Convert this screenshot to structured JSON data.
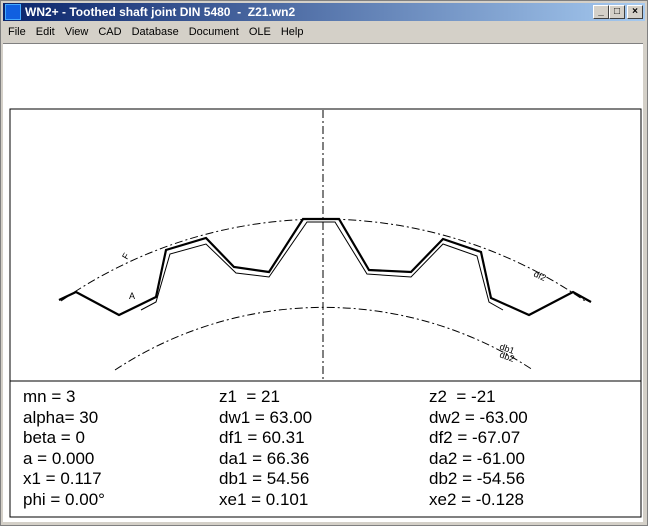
{
  "window": {
    "title": "WN2+ - Toothed shaft joint DIN 5480  -  Z21.wn2"
  },
  "menu": [
    "File",
    "Edit",
    "View",
    "CAD",
    "Database",
    "Document",
    "OLE",
    "Help"
  ],
  "drawing": {
    "labels": [
      "F",
      "A",
      "df2",
      "db1",
      "db2"
    ]
  },
  "table": {
    "rows": [
      [
        "mn = 3",
        "z1  = 21",
        "z2  = -21"
      ],
      [
        "alpha= 30",
        "dw1 = 63.00",
        "dw2 = -63.00"
      ],
      [
        "beta = 0",
        "df1 = 60.31",
        "df2 = -67.07"
      ],
      [
        "a = 0.000",
        "da1 = 66.36",
        "da2 = -61.00"
      ],
      [
        "x1 = 0.117",
        "db1 = 54.56",
        "db2 = -54.56"
      ],
      [
        "phi = 0.00°",
        "xe1 = 0.101",
        "xe2 = -0.128"
      ]
    ]
  }
}
